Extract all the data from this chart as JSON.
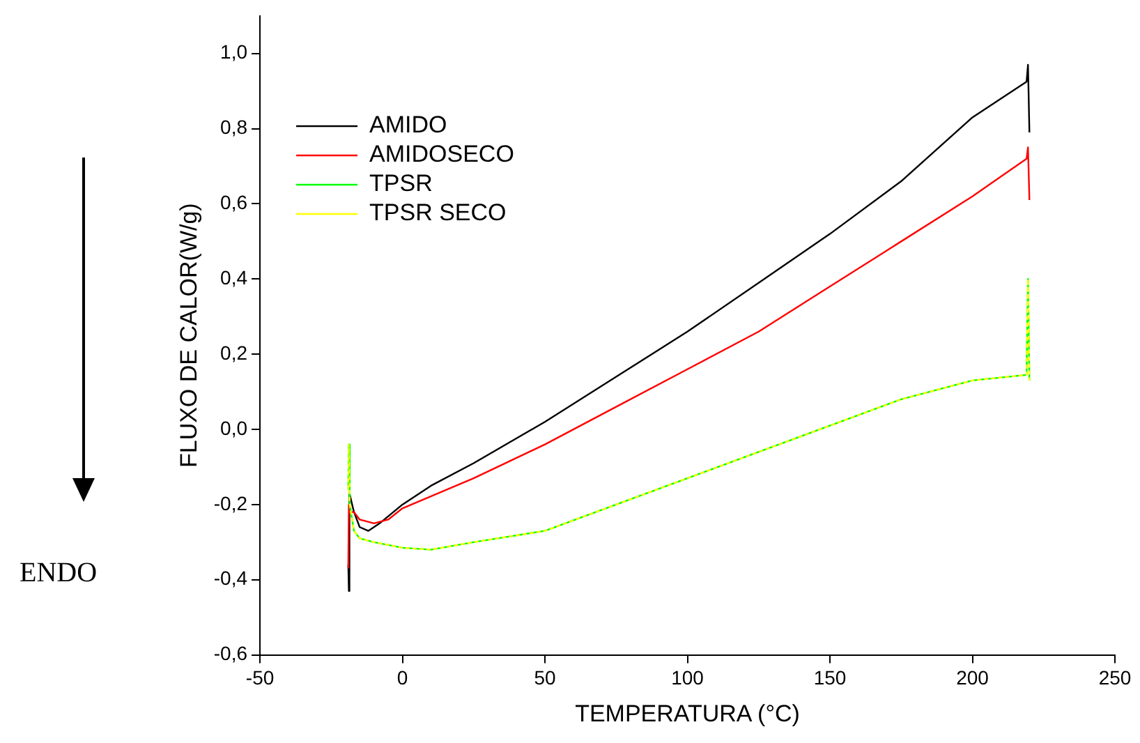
{
  "chart_data": {
    "type": "line",
    "xlabel": "TEMPERATURA (°C)",
    "ylabel": "FLUXO DE CALOR(W/g)",
    "annotations": [
      "ENDO"
    ],
    "xlim": [
      -50,
      250
    ],
    "xticks": [
      -50,
      0,
      50,
      100,
      150,
      200,
      250
    ],
    "ylim": [
      -0.6,
      1.1
    ],
    "yticks": [
      {
        "value": -0.6,
        "label": "-0,6"
      },
      {
        "value": -0.4,
        "label": "-0,4"
      },
      {
        "value": -0.2,
        "label": "-0,2"
      },
      {
        "value": 0,
        "label": "0,0"
      },
      {
        "value": 0.2,
        "label": "0,2"
      },
      {
        "value": 0.4,
        "label": "0,4"
      },
      {
        "value": 0.6,
        "label": "0,6"
      },
      {
        "value": 0.8,
        "label": "0,8"
      },
      {
        "value": 1.0,
        "label": "1,0"
      }
    ],
    "grid": false,
    "legend": "top left",
    "marker": "none",
    "series": [
      {
        "name": "AMIDO",
        "color": "#000000",
        "line_style": "solid",
        "x": [
          -19,
          -18.8,
          -18.6,
          -17,
          -15,
          -12,
          -8,
          0,
          10,
          25,
          50,
          75,
          100,
          125,
          150,
          175,
          200,
          210,
          219,
          219.5,
          220
        ],
        "values": [
          -0.36,
          -0.43,
          -0.17,
          -0.22,
          -0.26,
          -0.27,
          -0.25,
          -0.2,
          -0.15,
          -0.09,
          0.02,
          0.14,
          0.26,
          0.39,
          0.52,
          0.66,
          0.83,
          0.88,
          0.925,
          0.97,
          0.79
        ]
      },
      {
        "name": "AMIDOSECO",
        "color": "#ff0000",
        "line_style": "solid",
        "x": [
          -19,
          -18.8,
          -18.5,
          -17,
          -15,
          -10,
          -5,
          0,
          25,
          50,
          75,
          100,
          125,
          150,
          175,
          200,
          219,
          219.5,
          220
        ],
        "values": [
          -0.37,
          -0.2,
          -0.22,
          -0.22,
          -0.24,
          -0.25,
          -0.24,
          -0.21,
          -0.13,
          -0.04,
          0.06,
          0.16,
          0.26,
          0.38,
          0.5,
          0.62,
          0.72,
          0.75,
          0.61
        ]
      },
      {
        "name": "TPSR",
        "color": "#00ff00",
        "line_style": "solid",
        "x": [
          -19,
          -18.8,
          -18.5,
          -17,
          -15,
          -10,
          0,
          10,
          25,
          50,
          75,
          100,
          125,
          150,
          175,
          200,
          219,
          219.5,
          220
        ],
        "values": [
          -0.16,
          -0.04,
          -0.2,
          -0.27,
          -0.29,
          -0.3,
          -0.315,
          -0.32,
          -0.3,
          -0.27,
          -0.2,
          -0.13,
          -0.06,
          0.01,
          0.08,
          0.13,
          0.145,
          0.4,
          0.13
        ]
      },
      {
        "name": "TPSR SECO",
        "color": "#ffff00",
        "line_style": "dashed",
        "x": [
          -19,
          -18.8,
          -18.5,
          -17,
          -15,
          -10,
          0,
          10,
          25,
          50,
          75,
          100,
          125,
          150,
          175,
          200,
          219,
          219.5,
          220
        ],
        "values": [
          -0.16,
          -0.04,
          -0.2,
          -0.27,
          -0.29,
          -0.3,
          -0.315,
          -0.32,
          -0.3,
          -0.27,
          -0.2,
          -0.13,
          -0.06,
          0.01,
          0.08,
          0.13,
          0.145,
          0.4,
          0.13
        ]
      }
    ]
  }
}
